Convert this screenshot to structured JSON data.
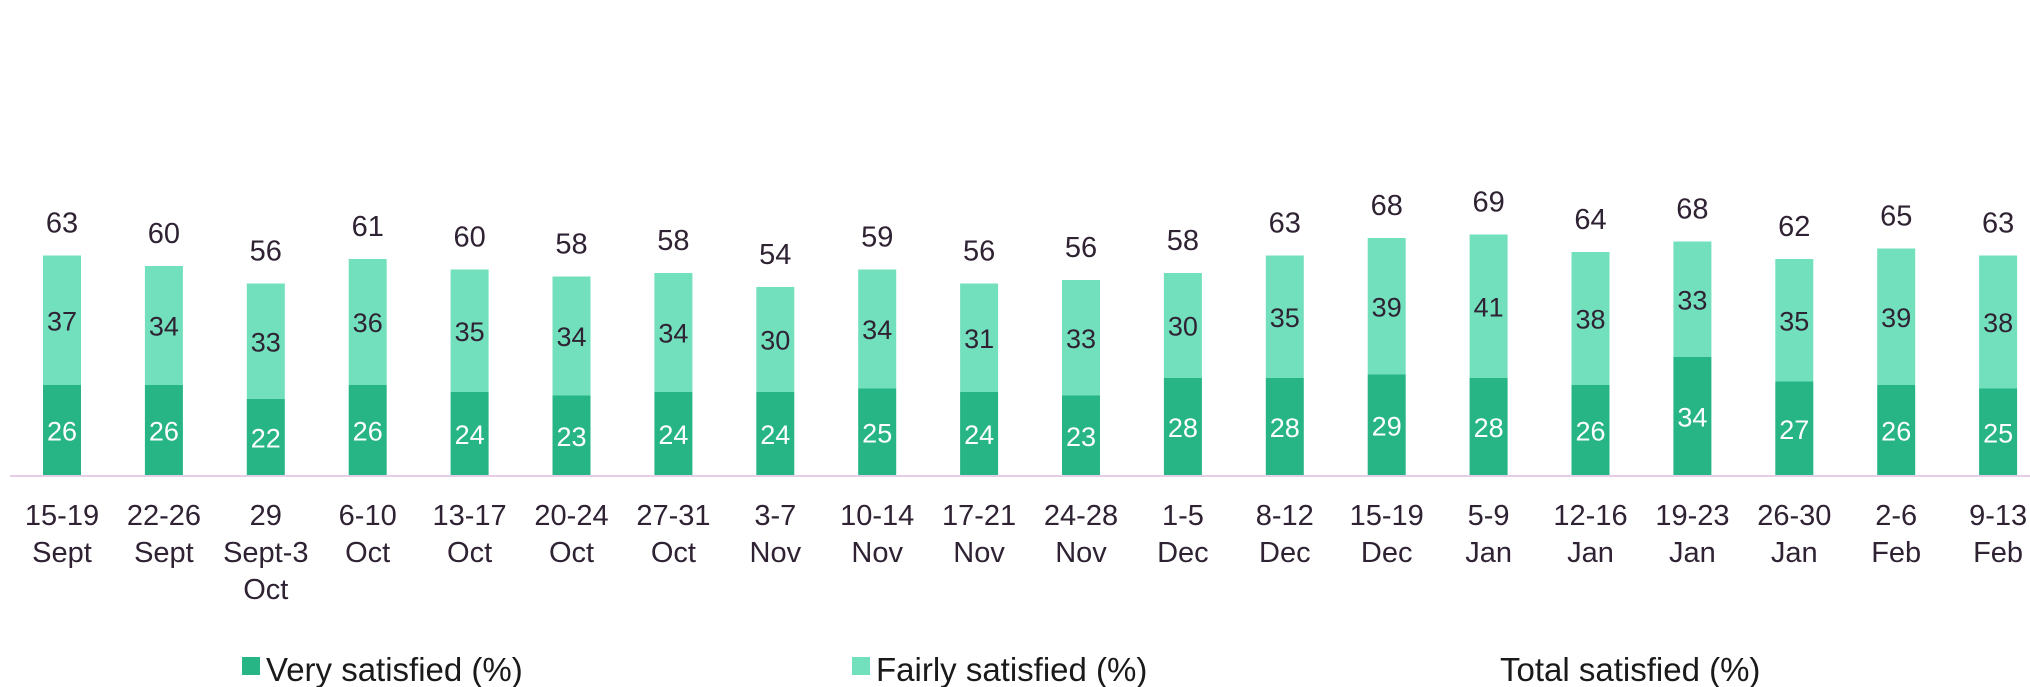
{
  "chart_data": {
    "type": "bar",
    "stacked": true,
    "categories": [
      [
        "15-19",
        "Sept"
      ],
      [
        "22-26",
        "Sept"
      ],
      [
        "29",
        "Sept-3",
        "Oct"
      ],
      [
        "6-10",
        "Oct"
      ],
      [
        "13-17",
        "Oct"
      ],
      [
        "20-24",
        "Oct"
      ],
      [
        "27-31",
        "Oct"
      ],
      [
        "3-7",
        "Nov"
      ],
      [
        "10-14",
        "Nov"
      ],
      [
        "17-21",
        "Nov"
      ],
      [
        "24-28",
        "Nov"
      ],
      [
        "1-5",
        "Dec"
      ],
      [
        "8-12",
        "Dec"
      ],
      [
        "15-19",
        "Dec"
      ],
      [
        "5-9",
        "Jan"
      ],
      [
        "12-16",
        "Jan"
      ],
      [
        "19-23",
        "Jan"
      ],
      [
        "26-30",
        "Jan"
      ],
      [
        "2-6",
        "Feb"
      ],
      [
        "9-13",
        "Feb"
      ]
    ],
    "series": [
      {
        "name": "Very satisfied (%)",
        "color": "#27b585",
        "label_color": "#ffffff",
        "values": [
          26,
          26,
          22,
          26,
          24,
          23,
          24,
          24,
          25,
          24,
          23,
          28,
          28,
          29,
          28,
          26,
          34,
          27,
          26,
          25
        ]
      },
      {
        "name": "Fairly satisfied (%)",
        "color": "#72e0bd",
        "label_color": "#2e2233",
        "values": [
          37,
          34,
          33,
          36,
          35,
          34,
          34,
          30,
          34,
          31,
          33,
          30,
          35,
          39,
          41,
          38,
          33,
          35,
          39,
          38
        ]
      }
    ],
    "totals": {
      "name": "Total satisfied (%)",
      "values": [
        63,
        60,
        56,
        61,
        60,
        58,
        58,
        54,
        59,
        56,
        56,
        58,
        63,
        68,
        69,
        64,
        68,
        62,
        65,
        63
      ]
    },
    "ylim": [
      0,
      75
    ],
    "grid": false,
    "legend": "bottom",
    "axis_color": "#e5cde8"
  }
}
